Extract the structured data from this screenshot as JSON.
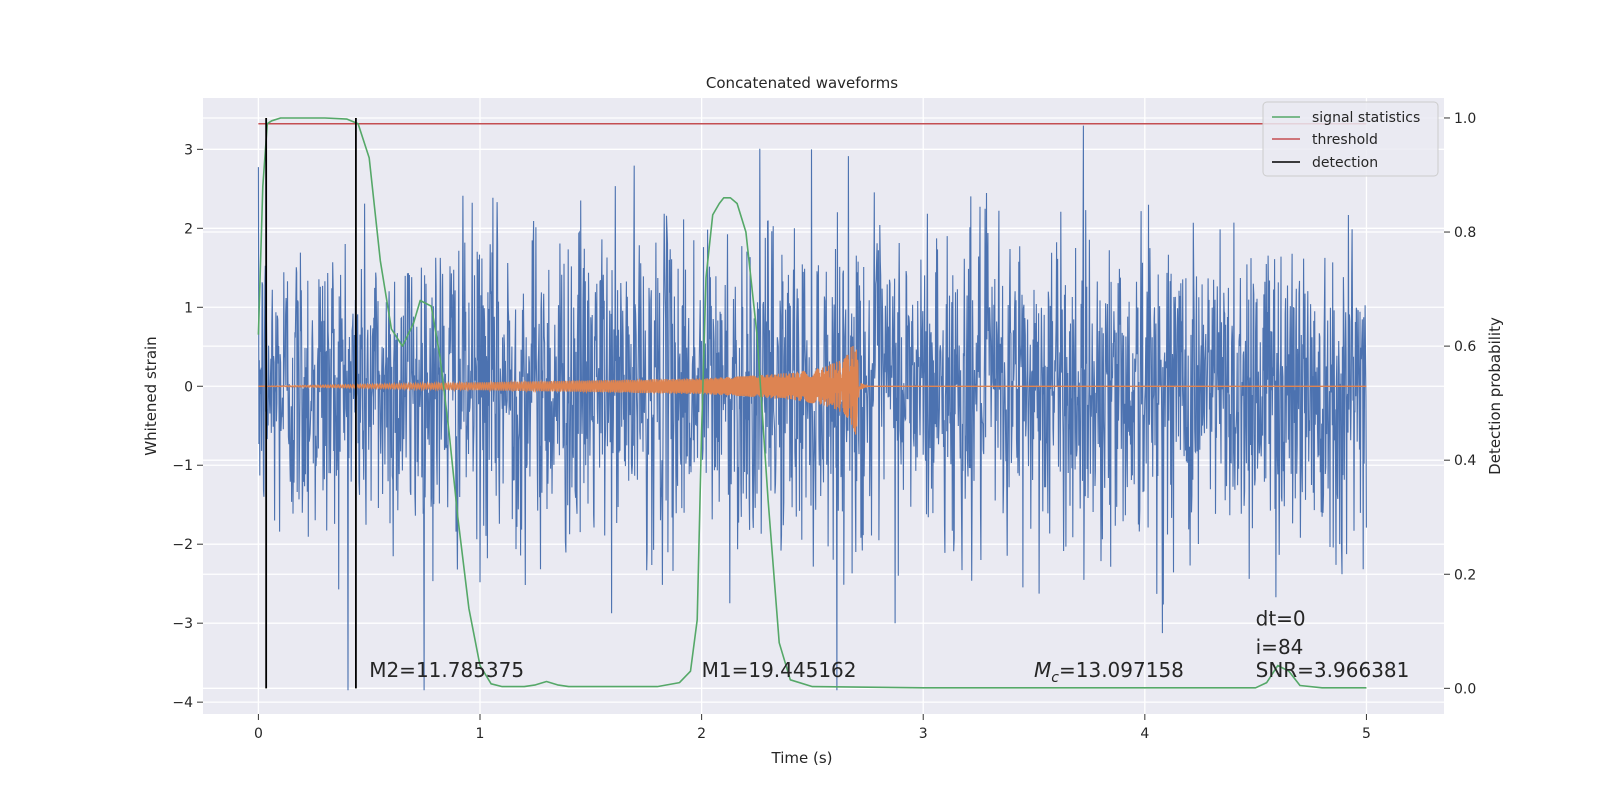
{
  "chart_data": {
    "type": "line",
    "title": "Concatenated waveforms",
    "xlabel": "Time (s)",
    "ylabel": "Whitened strain",
    "y2label": "Detection probability",
    "xlim": [
      -0.25,
      5.35
    ],
    "ylim": [
      -4.15,
      3.65
    ],
    "y2lim": [
      -0.045,
      1.035
    ],
    "grid": true,
    "x_ticks": [
      0,
      1,
      2,
      3,
      4,
      5
    ],
    "x_tick_labels": [
      "0",
      "1",
      "2",
      "3",
      "4",
      "5"
    ],
    "y_ticks": [
      -4,
      -3,
      -2,
      -1,
      0,
      1,
      2,
      3
    ],
    "y_tick_labels": [
      "−4",
      "−3",
      "−2",
      "−1",
      "0",
      "1",
      "2",
      "3"
    ],
    "y2_ticks": [
      0.0,
      0.2,
      0.4,
      0.6,
      0.8,
      1.0
    ],
    "y2_tick_labels": [
      "0.0",
      "0.2",
      "0.4",
      "0.6",
      "0.8",
      "1.0"
    ],
    "legend_position": "top-right",
    "series": [
      {
        "kind": "whitened strain noise",
        "axis": "left",
        "color": "#4c72b0",
        "x_range": [
          0,
          5
        ],
        "typical_amplitude": 1.0,
        "max": 3.3,
        "min": -3.85
      },
      {
        "kind": "injected waveform",
        "axis": "left",
        "color": "#dd8452",
        "x": [
          0,
          2.0,
          2.2,
          2.4,
          2.55,
          2.65,
          2.7,
          2.71,
          2.75,
          5.0
        ],
        "envelope": [
          0,
          0.1,
          0.13,
          0.17,
          0.24,
          0.36,
          0.65,
          0.05,
          0.0,
          0.0
        ]
      },
      {
        "name": "signal statistics",
        "axis": "right",
        "color": "#55a868",
        "x": [
          0,
          0.02,
          0.04,
          0.06,
          0.1,
          0.2,
          0.3,
          0.4,
          0.45,
          0.5,
          0.55,
          0.6,
          0.65,
          0.7,
          0.73,
          0.78,
          0.82,
          0.86,
          0.9,
          0.95,
          1.0,
          1.05,
          1.1,
          1.2,
          1.25,
          1.3,
          1.35,
          1.4,
          1.6,
          1.8,
          1.9,
          1.95,
          1.98,
          2.0,
          2.02,
          2.05,
          2.08,
          2.1,
          2.13,
          2.16,
          2.2,
          2.25,
          2.3,
          2.35,
          2.4,
          2.5,
          3.0,
          4.0,
          4.5,
          4.55,
          4.6,
          4.65,
          4.7,
          4.8,
          5.0
        ],
        "values": [
          0.62,
          0.88,
          0.99,
          0.995,
          1.0,
          1.0,
          1.0,
          0.998,
          0.99,
          0.93,
          0.75,
          0.63,
          0.6,
          0.64,
          0.68,
          0.67,
          0.58,
          0.45,
          0.3,
          0.14,
          0.04,
          0.008,
          0.003,
          0.003,
          0.006,
          0.012,
          0.006,
          0.003,
          0.003,
          0.003,
          0.01,
          0.03,
          0.12,
          0.45,
          0.72,
          0.83,
          0.85,
          0.86,
          0.86,
          0.85,
          0.8,
          0.62,
          0.33,
          0.08,
          0.015,
          0.003,
          0.001,
          0.001,
          0.001,
          0.01,
          0.04,
          0.03,
          0.005,
          0.001,
          0.001
        ]
      },
      {
        "name": "threshold",
        "axis": "right",
        "color": "#c44e52",
        "x": [
          0,
          5
        ],
        "values": [
          0.99,
          0.99
        ]
      },
      {
        "name": "detection",
        "axis": "right",
        "color": "#000000",
        "x_positions": [
          0.035,
          0.44
        ],
        "from": 0.0,
        "to": 1.0
      }
    ],
    "annotations": [
      {
        "text": "M2=11.785375",
        "x": 0.5,
        "y": 0.02,
        "axis": "right"
      },
      {
        "text": "M1=19.445162",
        "x": 2.0,
        "y": 0.02,
        "axis": "right"
      },
      {
        "text": "=13.097158",
        "prefix_symbol": "M",
        "prefix_subscript": "c",
        "x": 3.5,
        "y": 0.02,
        "axis": "right"
      },
      {
        "text": "SNR=3.966381",
        "x": 4.5,
        "y": 0.02,
        "axis": "right"
      },
      {
        "text": "i=84",
        "x": 4.5,
        "y": 0.06,
        "axis": "right"
      },
      {
        "text": "dt=0",
        "x": 4.5,
        "y": 0.11,
        "axis": "right"
      }
    ]
  },
  "legend": {
    "items": [
      {
        "label": "signal statistics",
        "color": "#55a868"
      },
      {
        "label": "threshold",
        "color": "#c44e52"
      },
      {
        "label": "detection",
        "color": "#000000"
      }
    ]
  }
}
